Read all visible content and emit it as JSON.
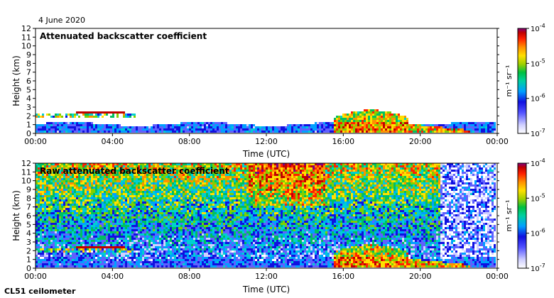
{
  "header": {
    "date": "4 June 2020",
    "instrument": "CL51 ceilometer"
  },
  "chart_data": [
    {
      "type": "heatmap",
      "title": "Attenuated backscatter coefficient",
      "xlabel": "Time (UTC)",
      "ylabel": "Height (km)",
      "xticks": [
        "00:00",
        "04:00",
        "08:00",
        "12:00",
        "16:00",
        "20:00",
        "00:00"
      ],
      "xlim_hours": [
        0,
        24
      ],
      "ylim": [
        0,
        12
      ],
      "yticks": [
        0,
        1,
        2,
        3,
        4,
        5,
        6,
        7,
        8,
        9,
        10,
        11,
        12
      ],
      "colorbar": {
        "scale": "log",
        "range": [
          1e-07,
          0.0001
        ],
        "label": "m⁻¹ sr⁻¹",
        "ticks": [
          {
            "base": "10",
            "exp": "-7"
          },
          {
            "base": "10",
            "exp": "-6"
          },
          {
            "base": "10",
            "exp": "-5"
          },
          {
            "base": "10",
            "exp": "-4"
          }
        ]
      },
      "features": [
        {
          "name": "boundary layer",
          "hours": [
            0,
            24
          ],
          "height_km": [
            0,
            1.2
          ]
        },
        {
          "name": "cloud layer",
          "hours": [
            0,
            5
          ],
          "height_km": [
            1.9,
            2.4
          ]
        },
        {
          "name": "thick cloud",
          "hours": [
            15.5,
            19.2
          ],
          "height_km": [
            0,
            2.8
          ]
        }
      ]
    },
    {
      "type": "heatmap",
      "title": "Raw attenuated backscatter coefficient",
      "xlabel": "Time (UTC)",
      "ylabel": "Height (km)",
      "xticks": [
        "00:00",
        "04:00",
        "08:00",
        "12:00",
        "16:00",
        "20:00",
        "00:00"
      ],
      "xlim_hours": [
        0,
        24
      ],
      "ylim": [
        0,
        12
      ],
      "yticks": [
        0,
        1,
        2,
        3,
        4,
        5,
        6,
        7,
        8,
        9,
        10,
        11,
        12
      ],
      "colorbar": {
        "scale": "log",
        "range": [
          1e-07,
          0.0001
        ],
        "label": "m⁻¹ sr⁻¹",
        "ticks": [
          {
            "base": "10",
            "exp": "-7"
          },
          {
            "base": "10",
            "exp": "-6"
          },
          {
            "base": "10",
            "exp": "-5"
          },
          {
            "base": "10",
            "exp": "-4"
          }
        ]
      }
    }
  ],
  "colors": [
    "#ffffff",
    "#d0d0ff",
    "#6060ff",
    "#1010e0",
    "#00a0ff",
    "#00d0d0",
    "#00c060",
    "#80d000",
    "#ffe000",
    "#ff9000",
    "#ff2000",
    "#c00000",
    "#800080"
  ]
}
